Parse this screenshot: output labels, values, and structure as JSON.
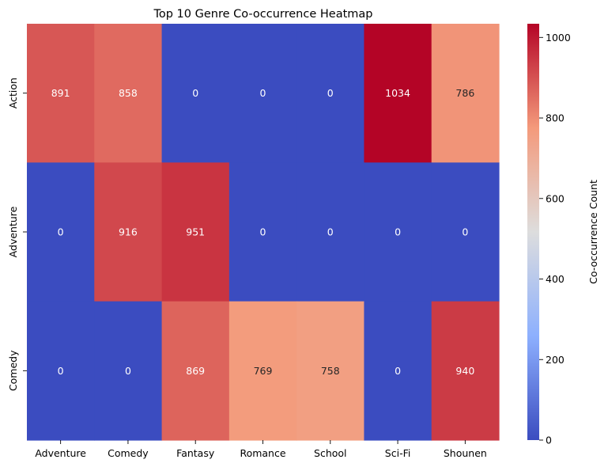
{
  "chart_data": {
    "type": "heatmap",
    "title": "Top 10 Genre Co-occurrence Heatmap",
    "xlabel": "",
    "ylabel": "",
    "x_categories": [
      "Adventure",
      "Comedy",
      "Fantasy",
      "Romance",
      "School",
      "Sci-Fi",
      "Shounen"
    ],
    "y_categories": [
      "Action",
      "Adventure",
      "Comedy"
    ],
    "values": [
      [
        891,
        858,
        0,
        0,
        0,
        1034,
        786
      ],
      [
        0,
        916,
        951,
        0,
        0,
        0,
        0
      ],
      [
        0,
        0,
        869,
        769,
        758,
        0,
        940
      ]
    ],
    "colormap": "coolwarm",
    "vmin": 0,
    "vmax": 1034,
    "annotations": true,
    "colorbar": {
      "label": "Co-occurrence Count",
      "ticks": [
        0,
        200,
        400,
        600,
        800,
        1000
      ]
    }
  }
}
